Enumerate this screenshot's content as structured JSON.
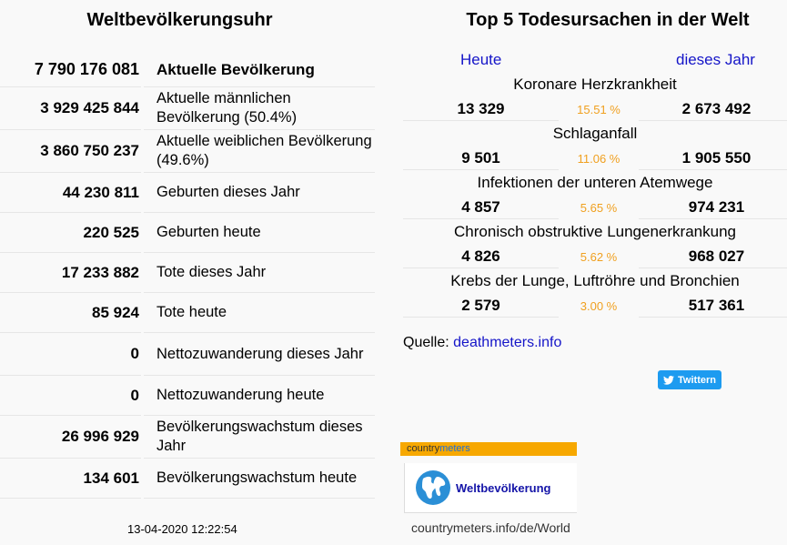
{
  "left": {
    "title": "Weltbevölkerungsuhr",
    "rows": [
      {
        "value": "7 790 176 081",
        "label": "Aktuelle Bevölkerung"
      },
      {
        "value": "3 929 425 844",
        "label": "Aktuelle männlichen Bevölkerung (50.4%)"
      },
      {
        "value": "3 860 750 237",
        "label": "Aktuelle weiblichen Bevölkerung (49.6%)"
      },
      {
        "value": "44 230 811",
        "label": "Geburten dieses Jahr"
      },
      {
        "value": "220 525",
        "label": "Geburten heute"
      },
      {
        "value": "17 233 882",
        "label": "Tote dieses Jahr"
      },
      {
        "value": "85 924",
        "label": "Tote heute"
      },
      {
        "value": "0",
        "label": "Nettozuwanderung dieses Jahr"
      },
      {
        "value": "0",
        "label": "Nettozuwanderung heute"
      },
      {
        "value": "26 996 929",
        "label": "Bevölkerungswachstum dieses Jahr"
      },
      {
        "value": "134 601",
        "label": "Bevölkerungswachstum heute"
      }
    ],
    "timestamp": "13-04-2020 12:22:54"
  },
  "right": {
    "title": "Top 5 Todesursachen in der Welt",
    "header_today": "Heute",
    "header_year": "dieses Jahr",
    "causes": [
      {
        "name": "Koronare Herzkrankheit",
        "today": "13 329",
        "percent": "15.51 %",
        "year": "2 673 492"
      },
      {
        "name": "Schlaganfall",
        "today": "9 501",
        "percent": "11.06 %",
        "year": "1 905 550"
      },
      {
        "name": "Infektionen der unteren Atemwege",
        "today": "4 857",
        "percent": "5.65 %",
        "year": "974 231"
      },
      {
        "name": "Chronisch obstruktive Lungenerkrankung",
        "today": "4 826",
        "percent": "5.62 %",
        "year": "968 027"
      },
      {
        "name": "Krebs der Lunge, Luftröhre und Bronchien",
        "today": "2 579",
        "percent": "3.00 %",
        "year": "517 361"
      }
    ],
    "source_label": "Quelle:",
    "source_link": "deathmeters.info",
    "tweet_label": "Twittern"
  },
  "widget": {
    "logo_part1": "country",
    "logo_part2": "meters",
    "card_label": "Weltbevölkerung",
    "url": "countrymeters.info/de/World"
  },
  "colors": {
    "link": "#1515c8",
    "percent": "#f0a020",
    "tweet": "#1d9bf0",
    "widget_bar": "#f7a800"
  },
  "icons": {
    "tweet": "twitter-bird-icon",
    "widget": "globe-icon"
  }
}
